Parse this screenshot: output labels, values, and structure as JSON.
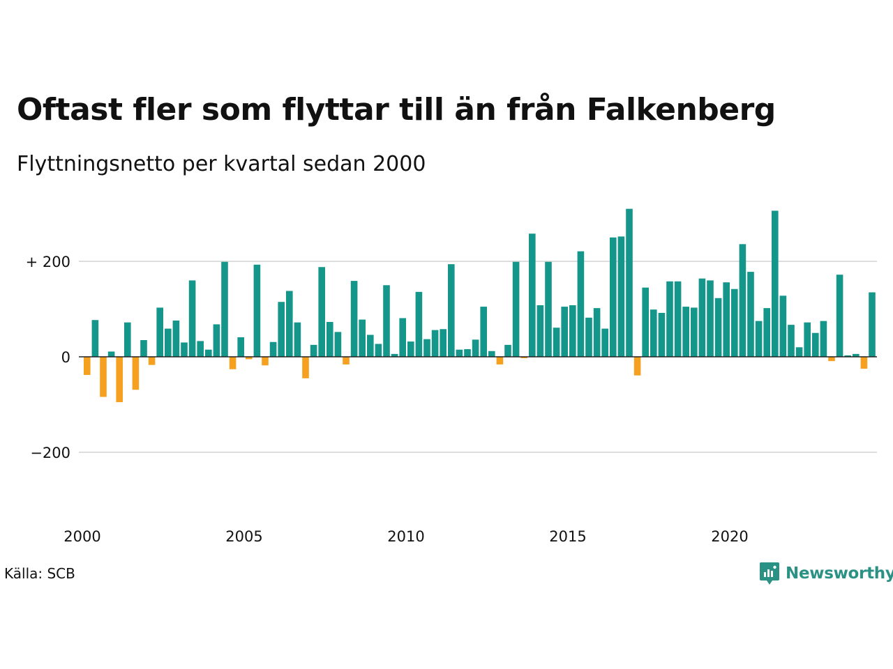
{
  "title": "Oftast fler som flyttar till än från Falkenberg",
  "subtitle": "Flyttningsnetto per kvartal sedan 2000",
  "source": "Källa: SCB",
  "brand": {
    "name": "Newsworthy",
    "icon": "newsworthy-logo-icon"
  },
  "colors": {
    "positive": "#15968a",
    "negative": "#f5a01e",
    "grid": "#dddddd",
    "zero_line": "#222222"
  },
  "chart_data": {
    "type": "bar",
    "xlabel": "",
    "ylabel": "",
    "ylim": [
      -300,
      320
    ],
    "x_start": "2000 Q1",
    "y_ticks": [
      {
        "value": 200,
        "label": "+ 200"
      },
      {
        "value": 0,
        "label": "0"
      },
      {
        "value": -200,
        "label": "−200"
      }
    ],
    "x_ticks": [
      {
        "year": 2000,
        "label": "2000"
      },
      {
        "year": 2005,
        "label": "2005"
      },
      {
        "year": 2010,
        "label": "2010"
      },
      {
        "year": 2015,
        "label": "2015"
      },
      {
        "year": 2020,
        "label": "2020"
      }
    ],
    "values": [
      -38,
      77,
      -84,
      11,
      -95,
      72,
      -69,
      35,
      -17,
      103,
      59,
      76,
      30,
      160,
      33,
      15,
      68,
      199,
      -26,
      41,
      -5,
      193,
      -18,
      31,
      115,
      138,
      72,
      -45,
      25,
      188,
      73,
      52,
      -16,
      159,
      78,
      46,
      27,
      150,
      6,
      81,
      32,
      136,
      37,
      56,
      58,
      194,
      15,
      16,
      36,
      105,
      12,
      -16,
      25,
      199,
      -3,
      258,
      108,
      199,
      61,
      105,
      108,
      221,
      82,
      102,
      59,
      250,
      252,
      310,
      -39,
      145,
      99,
      92,
      158,
      158,
      105,
      103,
      164,
      160,
      123,
      156,
      142,
      236,
      178,
      75,
      102,
      306,
      128,
      67,
      20,
      72,
      50,
      75,
      -9,
      172,
      3,
      6,
      -25,
      135
    ]
  }
}
